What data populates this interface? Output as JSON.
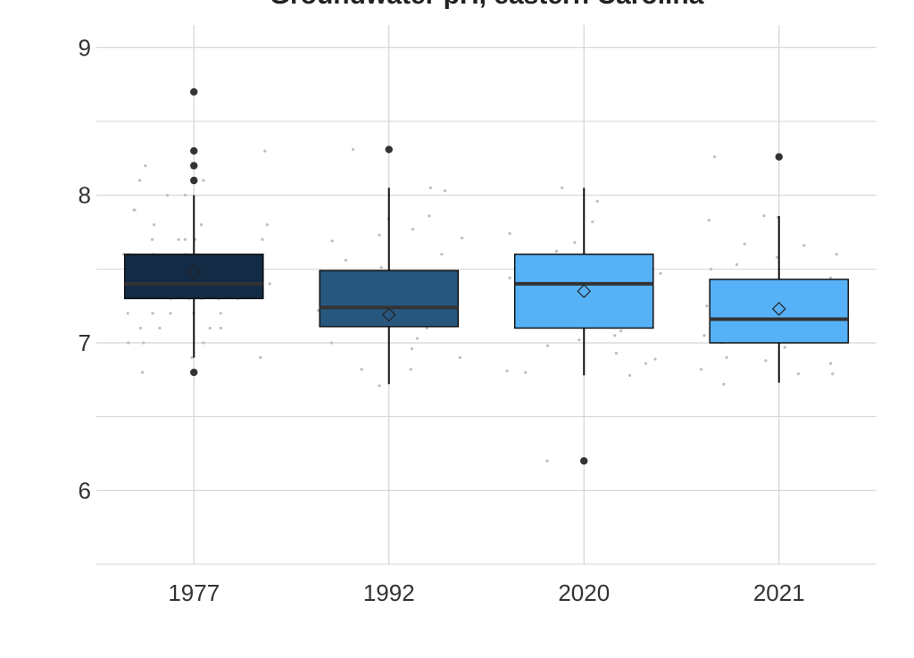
{
  "chart_data": {
    "type": "box",
    "title": "Groundwater pH, eastern Carolina",
    "xlabel": "",
    "ylabel": "",
    "categories": [
      "1977",
      "1992",
      "2020",
      "2021"
    ],
    "ylim": [
      5.5,
      9.25
    ],
    "yticks": [
      6,
      7,
      8,
      9
    ],
    "grid": true,
    "colors": {
      "1977": "#132b45",
      "1992": "#27577f",
      "2020": "#56b1f7",
      "2021": "#56b1f7",
      "median": "#333333",
      "outlier": "#333333",
      "jitter": "#bdbdbd",
      "grid": "#d4d4d4"
    },
    "boxes": [
      {
        "category": "1977",
        "lower_whisker": 6.9,
        "q1": 7.3,
        "median": 7.4,
        "q3": 7.6,
        "upper_whisker": 8.0,
        "mean": 7.48,
        "outliers": [
          6.8,
          8.1,
          8.2,
          8.3,
          8.7
        ]
      },
      {
        "category": "1992",
        "lower_whisker": 6.72,
        "q1": 7.11,
        "median": 7.24,
        "q3": 7.49,
        "upper_whisker": 8.05,
        "mean": 7.19,
        "outliers": [
          8.31
        ]
      },
      {
        "category": "2020",
        "lower_whisker": 6.78,
        "q1": 7.1,
        "median": 7.4,
        "q3": 7.6,
        "upper_whisker": 8.05,
        "mean": 7.35,
        "outliers": [
          6.2
        ]
      },
      {
        "category": "2021",
        "lower_whisker": 6.73,
        "q1": 7.0,
        "median": 7.16,
        "q3": 7.43,
        "upper_whisker": 7.86,
        "mean": 7.23,
        "outliers": [
          8.26
        ]
      }
    ],
    "jitter_points": [
      {
        "category": "1977",
        "values": [
          8.7,
          8.1,
          7.9,
          7.8,
          7.7,
          7.7,
          7.6,
          7.5,
          7.5,
          7.4,
          7.4,
          7.3,
          7.3,
          7.2,
          7.2,
          7.2,
          7.1,
          7.1,
          7.0,
          6.9,
          7.0,
          7.6,
          7.7,
          7.8,
          7.9,
          8.0,
          8.3,
          8.2,
          7.5,
          7.3,
          7.2,
          7.1,
          6.8,
          7.4,
          7.6,
          7.7,
          7.8,
          8.0,
          8.1,
          7.5,
          7.3,
          7.2,
          7.0,
          6.9,
          7.6,
          7.4,
          7.3,
          7.2,
          7.1,
          7.7
        ]
      },
      {
        "category": "1992",
        "values": [
          7.86,
          7.77,
          7.69,
          7.56,
          7.45,
          7.32,
          7.22,
          7.12,
          7.03,
          6.96,
          6.9,
          6.82,
          6.71,
          7.84,
          7.73,
          7.6,
          7.51,
          7.42,
          7.31,
          7.2,
          7.1,
          7.0,
          8.31,
          8.05,
          8.03,
          7.71,
          7.38,
          7.28,
          7.16,
          6.82
        ]
      },
      {
        "category": "2020",
        "values": [
          7.82,
          7.74,
          7.62,
          7.5,
          7.4,
          7.3,
          7.2,
          7.08,
          6.98,
          6.89,
          6.81,
          8.05,
          7.96,
          7.68,
          7.55,
          7.47,
          7.34,
          7.24,
          7.12,
          7.02,
          6.8,
          6.78,
          6.86,
          6.2,
          7.44,
          7.15,
          6.93,
          7.05
        ]
      },
      {
        "category": "2021",
        "values": [
          7.66,
          7.6,
          7.53,
          7.44,
          7.35,
          7.25,
          7.14,
          7.05,
          6.97,
          6.86,
          6.79,
          6.72,
          7.85,
          7.83,
          7.67,
          7.58,
          7.5,
          7.4,
          7.3,
          7.2,
          7.1,
          7.0,
          6.9,
          6.82,
          6.79,
          8.26,
          7.86,
          7.15,
          7.35,
          6.88
        ]
      }
    ]
  }
}
